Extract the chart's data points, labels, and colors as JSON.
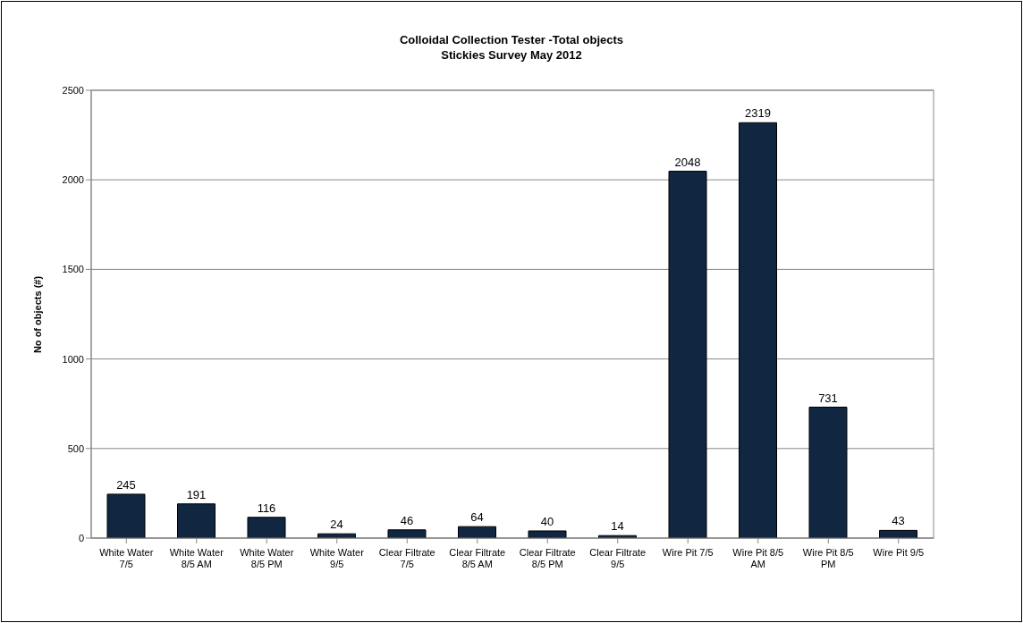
{
  "chart_data": {
    "type": "bar",
    "title": "Colloidal Collection Tester -Total objects",
    "subtitle": "Stickies Survey May 2012",
    "ylabel": "No of objects (#)",
    "categories": [
      "White Water 7/5",
      "White Water 8/5 AM",
      "White Water 8/5 PM",
      "White Water 9/5",
      "Clear Filtrate 7/5",
      "Clear Filtrate 8/5 AM",
      "Clear Filtrate 8/5 PM",
      "Clear Filtrate 9/5",
      "Wire Pit 7/5",
      "Wire Pit 8/5 AM",
      "Wire Pit 8/5 PM",
      "Wire Pit 9/5"
    ],
    "values": [
      245,
      191,
      116,
      24,
      46,
      64,
      40,
      14,
      2048,
      2319,
      731,
      43
    ],
    "color": "#112640",
    "ylim": [
      0,
      2500
    ],
    "yticks": [
      0,
      500,
      1000,
      1500,
      2000,
      2500
    ],
    "grid": "y",
    "data_labels": true,
    "legend": false
  }
}
